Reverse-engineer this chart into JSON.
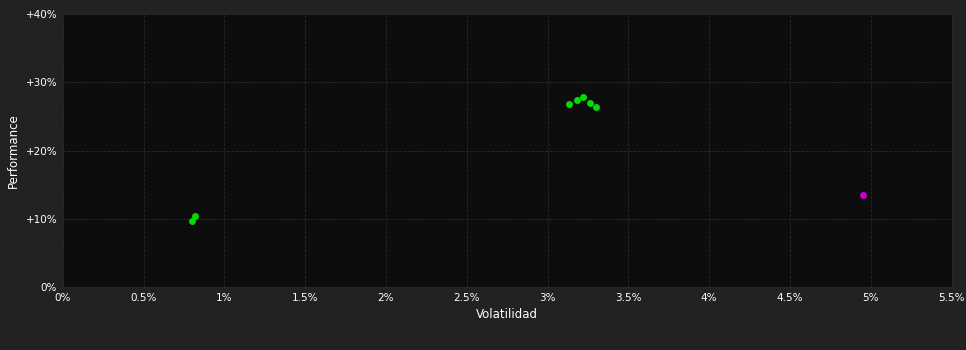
{
  "background_color": "#222222",
  "plot_bg_color": "#0d0d0d",
  "grid_color": "#2a2a2a",
  "text_color": "#ffffff",
  "xlabel": "Volatilidad",
  "ylabel": "Performance",
  "xlim": [
    0.0,
    0.055
  ],
  "ylim": [
    0.0,
    0.4
  ],
  "xtick_labels": [
    "0%",
    "0.5%",
    "1%",
    "1.5%",
    "2%",
    "2.5%",
    "3%",
    "3.5%",
    "4%",
    "4.5%",
    "5%",
    "5.5%"
  ],
  "xtick_values": [
    0.0,
    0.005,
    0.01,
    0.015,
    0.02,
    0.025,
    0.03,
    0.035,
    0.04,
    0.045,
    0.05,
    0.055
  ],
  "ytick_labels": [
    "0%",
    "+10%",
    "+20%",
    "+30%",
    "+40%"
  ],
  "ytick_values": [
    0.0,
    0.1,
    0.2,
    0.3,
    0.4
  ],
  "green_points": [
    [
      0.0082,
      0.104
    ],
    [
      0.008,
      0.096
    ],
    [
      0.0313,
      0.268
    ],
    [
      0.0318,
      0.274
    ],
    [
      0.0322,
      0.278
    ],
    [
      0.0326,
      0.27
    ],
    [
      0.033,
      0.264
    ]
  ],
  "magenta_points": [
    [
      0.0495,
      0.135
    ]
  ],
  "green_color": "#00dd00",
  "magenta_color": "#cc00cc",
  "marker_size": 5
}
